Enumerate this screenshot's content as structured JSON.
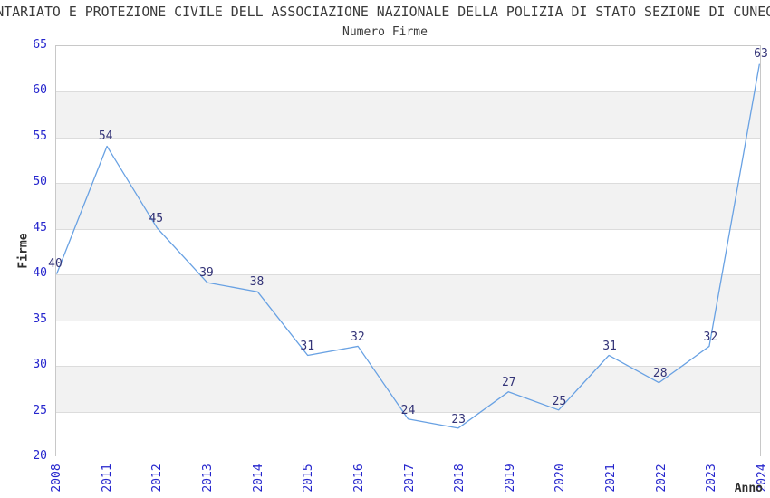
{
  "title": "NTARIATO E PROTEZIONE CIVILE DELL ASSOCIAZIONE NAZIONALE DELLA POLIZIA DI STATO SEZIONE DI CUNEO",
  "subtitle": "Numero Firme",
  "chart_data": {
    "type": "line",
    "title": "Numero Firme",
    "categories": [
      "2008",
      "2011",
      "2012",
      "2013",
      "2014",
      "2015",
      "2016",
      "2017",
      "2018",
      "2019",
      "2020",
      "2021",
      "2022",
      "2023",
      "2024"
    ],
    "values": [
      40,
      54,
      45,
      39,
      38,
      31,
      32,
      24,
      23,
      27,
      25,
      31,
      28,
      32,
      63
    ],
    "xlabel": "Anno",
    "ylabel": "Firme",
    "ylim": [
      20,
      65
    ],
    "yticks": [
      20,
      25,
      30,
      35,
      40,
      45,
      50,
      55,
      60,
      65
    ],
    "grid": "horizontal gridlines with alternating shaded bands",
    "legend_position": "none",
    "data_labels_shown": true
  },
  "colors": {
    "line": "#68a1e3",
    "tick_label": "#2525cd",
    "data_label": "#333377",
    "heading_text": "#3a3a3a",
    "band_fill": "#f2f2f2",
    "gridline": "#dcdcdc",
    "frame": "#c8c8c8",
    "background": "#ffffff"
  }
}
